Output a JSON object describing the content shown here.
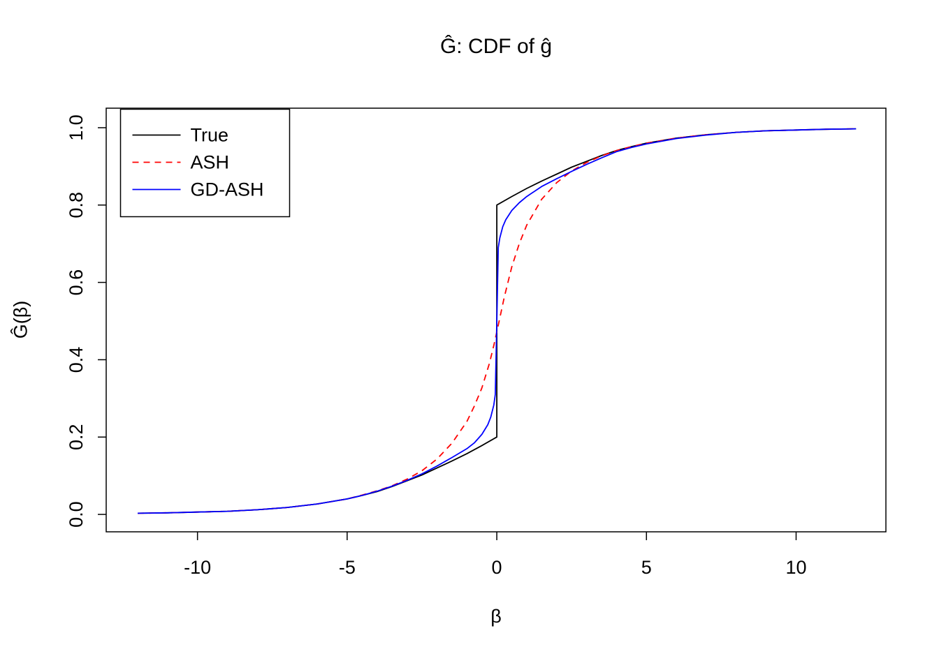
{
  "chart_data": {
    "type": "line",
    "title": "Ĝ: CDF of ĝ",
    "xlabel": "β",
    "ylabel": "Ĝ(β)",
    "xlim": [
      -13.05,
      13.0
    ],
    "ylim": [
      -0.045,
      1.0505
    ],
    "grid": false,
    "legend_position": "top-left",
    "axis_color": "#000000",
    "x_ticks": [
      -10,
      -5,
      0,
      5,
      10
    ],
    "x_tick_labels": [
      "-10",
      "-5",
      "0",
      "5",
      "10"
    ],
    "y_ticks": [
      0.0,
      0.2,
      0.4,
      0.6,
      0.8,
      1.0
    ],
    "y_tick_labels": [
      "0.0",
      "0.2",
      "0.4",
      "0.6",
      "0.8",
      "1.0"
    ],
    "series": [
      {
        "name": "True",
        "color": "#000000",
        "dash": "solid",
        "points": [
          [
            -12,
            0.003
          ],
          [
            -11,
            0.004
          ],
          [
            -10,
            0.006
          ],
          [
            -9,
            0.008
          ],
          [
            -8,
            0.012
          ],
          [
            -7,
            0.018
          ],
          [
            -6,
            0.027
          ],
          [
            -5,
            0.04
          ],
          [
            -4.5,
            0.049
          ],
          [
            -4,
            0.059
          ],
          [
            -3.5,
            0.072
          ],
          [
            -3,
            0.087
          ],
          [
            -2.5,
            0.102
          ],
          [
            -2,
            0.12
          ],
          [
            -1.5,
            0.138
          ],
          [
            -1,
            0.157
          ],
          [
            -0.5,
            0.178
          ],
          [
            0,
            0.2
          ],
          [
            0,
            0.8
          ],
          [
            0.5,
            0.822
          ],
          [
            1,
            0.843
          ],
          [
            1.5,
            0.862
          ],
          [
            2,
            0.88
          ],
          [
            2.5,
            0.898
          ],
          [
            3,
            0.913
          ],
          [
            3.5,
            0.928
          ],
          [
            4,
            0.941
          ],
          [
            4.5,
            0.951
          ],
          [
            5,
            0.96
          ],
          [
            6,
            0.973
          ],
          [
            7,
            0.982
          ],
          [
            8,
            0.988
          ],
          [
            9,
            0.992
          ],
          [
            10,
            0.994
          ],
          [
            11,
            0.996
          ],
          [
            12,
            0.997
          ]
        ]
      },
      {
        "name": "ASH",
        "color": "#FF0000",
        "dash": "dashed",
        "points": [
          [
            -12,
            0.003
          ],
          [
            -11,
            0.004
          ],
          [
            -10,
            0.006
          ],
          [
            -9,
            0.008
          ],
          [
            -8,
            0.012
          ],
          [
            -7,
            0.018
          ],
          [
            -6,
            0.027
          ],
          [
            -5,
            0.04
          ],
          [
            -4.5,
            0.05
          ],
          [
            -4,
            0.061
          ],
          [
            -3.5,
            0.074
          ],
          [
            -3,
            0.091
          ],
          [
            -2.5,
            0.113
          ],
          [
            -2,
            0.143
          ],
          [
            -1.5,
            0.184
          ],
          [
            -1,
            0.24
          ],
          [
            -0.75,
            0.28
          ],
          [
            -0.5,
            0.327
          ],
          [
            -0.25,
            0.39
          ],
          [
            -0.1,
            0.437
          ],
          [
            0,
            0.472
          ],
          [
            0.1,
            0.508
          ],
          [
            0.25,
            0.562
          ],
          [
            0.5,
            0.64
          ],
          [
            0.75,
            0.7
          ],
          [
            1,
            0.748
          ],
          [
            1.5,
            0.815
          ],
          [
            2,
            0.858
          ],
          [
            2.5,
            0.888
          ],
          [
            3,
            0.91
          ],
          [
            3.5,
            0.927
          ],
          [
            4,
            0.941
          ],
          [
            4.5,
            0.951
          ],
          [
            5,
            0.96
          ],
          [
            6,
            0.973
          ],
          [
            7,
            0.982
          ],
          [
            8,
            0.988
          ],
          [
            9,
            0.992
          ],
          [
            10,
            0.994
          ],
          [
            11,
            0.996
          ],
          [
            12,
            0.997
          ]
        ]
      },
      {
        "name": "GD-ASH",
        "color": "#0000FF",
        "dash": "solid",
        "points": [
          [
            -12,
            0.003
          ],
          [
            -11,
            0.004
          ],
          [
            -10,
            0.006
          ],
          [
            -9,
            0.008
          ],
          [
            -8,
            0.012
          ],
          [
            -7,
            0.018
          ],
          [
            -6,
            0.027
          ],
          [
            -5,
            0.04
          ],
          [
            -4.5,
            0.049
          ],
          [
            -4,
            0.06
          ],
          [
            -3.5,
            0.073
          ],
          [
            -3,
            0.088
          ],
          [
            -2.5,
            0.105
          ],
          [
            -2,
            0.125
          ],
          [
            -1.5,
            0.147
          ],
          [
            -1,
            0.17
          ],
          [
            -0.75,
            0.185
          ],
          [
            -0.5,
            0.207
          ],
          [
            -0.3,
            0.232
          ],
          [
            -0.2,
            0.252
          ],
          [
            -0.1,
            0.283
          ],
          [
            -0.05,
            0.31
          ],
          [
            0,
            0.5
          ],
          [
            0.05,
            0.69
          ],
          [
            0.1,
            0.715
          ],
          [
            0.2,
            0.744
          ],
          [
            0.3,
            0.762
          ],
          [
            0.5,
            0.786
          ],
          [
            0.75,
            0.806
          ],
          [
            1,
            0.822
          ],
          [
            1.5,
            0.848
          ],
          [
            2,
            0.868
          ],
          [
            2.5,
            0.887
          ],
          [
            3,
            0.905
          ],
          [
            3.5,
            0.922
          ],
          [
            4,
            0.938
          ],
          [
            4.5,
            0.949
          ],
          [
            5,
            0.958
          ],
          [
            6,
            0.972
          ],
          [
            7,
            0.981
          ],
          [
            8,
            0.988
          ],
          [
            9,
            0.992
          ],
          [
            10,
            0.994
          ],
          [
            11,
            0.996
          ],
          [
            12,
            0.997
          ]
        ]
      }
    ]
  }
}
